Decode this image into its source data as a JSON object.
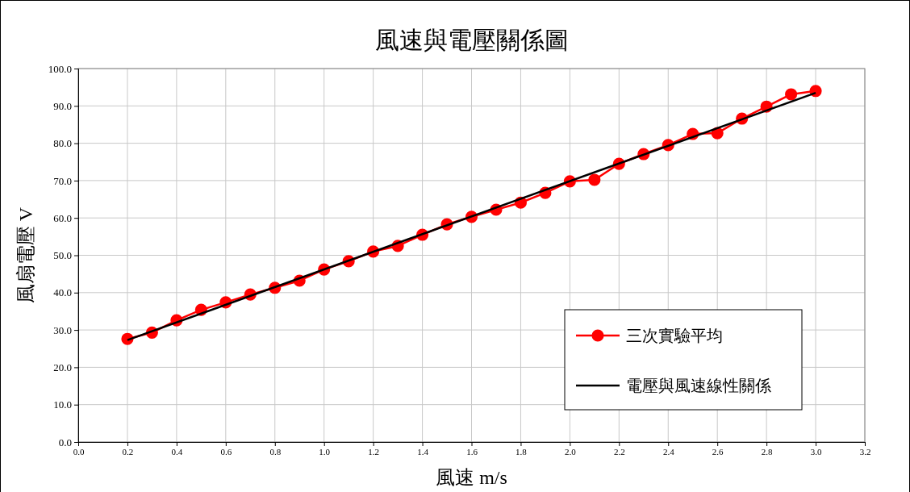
{
  "chart_data": {
    "type": "line",
    "title": "風速與電壓關係圖",
    "xlabel": "風速 m/s",
    "ylabel": "風扇電壓 V",
    "xlim": [
      0,
      3.2
    ],
    "xticks": [
      {
        "value": 0,
        "label": "0.0"
      },
      {
        "value": 0.2,
        "label": "0.2"
      },
      {
        "value": 0.4,
        "label": "0.4"
      },
      {
        "value": 0.6,
        "label": "0.6"
      },
      {
        "value": 0.8,
        "label": "0.8"
      },
      {
        "value": 1,
        "label": "1.0"
      },
      {
        "value": 1.2,
        "label": "1.2"
      },
      {
        "value": 1.4,
        "label": "1.4"
      },
      {
        "value": 1.6,
        "label": "1.6"
      },
      {
        "value": 1.8,
        "label": "1.8"
      },
      {
        "value": 2,
        "label": "2.0"
      },
      {
        "value": 2.2,
        "label": "2.2"
      },
      {
        "value": 2.4,
        "label": "2.4"
      },
      {
        "value": 2.6,
        "label": "2.6"
      },
      {
        "value": 2.8,
        "label": "2.8"
      },
      {
        "value": 3,
        "label": "3.0"
      },
      {
        "value": 3.2,
        "label": "3.2"
      }
    ],
    "ylim": [
      0,
      100
    ],
    "yticks": [
      {
        "value": 0,
        "label": "0.0"
      },
      {
        "value": 10,
        "label": "10.0"
      },
      {
        "value": 20,
        "label": "20.0"
      },
      {
        "value": 30,
        "label": "30.0"
      },
      {
        "value": 40,
        "label": "40.0"
      },
      {
        "value": 50,
        "label": "50.0"
      },
      {
        "value": 60,
        "label": "60.0"
      },
      {
        "value": 70,
        "label": "70.0"
      },
      {
        "value": 80,
        "label": "80.0"
      },
      {
        "value": 90,
        "label": "90.0"
      },
      {
        "value": 100,
        "label": "100.0"
      }
    ],
    "grid": true,
    "legend": "bottom right",
    "series": [
      {
        "name": "三次實驗平均",
        "color": "#ff0000",
        "marker": "circle",
        "x": [
          0.2,
          0.3,
          0.4,
          0.5,
          0.6,
          0.7,
          0.8,
          0.9,
          1.0,
          1.1,
          1.2,
          1.3,
          1.4,
          1.5,
          1.6,
          1.7,
          1.8,
          1.9,
          2.0,
          2.1,
          2.2,
          2.3,
          2.4,
          2.5,
          2.6,
          2.7,
          2.8,
          2.9,
          3.0
        ],
        "values": [
          27.6,
          29.3,
          32.6,
          35.4,
          37.4,
          39.5,
          41.3,
          43.2,
          46.2,
          48.4,
          51.0,
          52.5,
          55.5,
          58.3,
          60.3,
          62.2,
          64.1,
          66.7,
          69.8,
          70.2,
          74.5,
          77.1,
          79.5,
          82.5,
          82.7,
          86.6,
          89.8,
          93.1,
          94.0
        ]
      },
      {
        "name": "電壓與風速線性關係",
        "color": "#000000",
        "marker": "none",
        "x": [
          0.2,
          3.0
        ],
        "values": [
          27.3,
          93.5
        ]
      }
    ]
  }
}
